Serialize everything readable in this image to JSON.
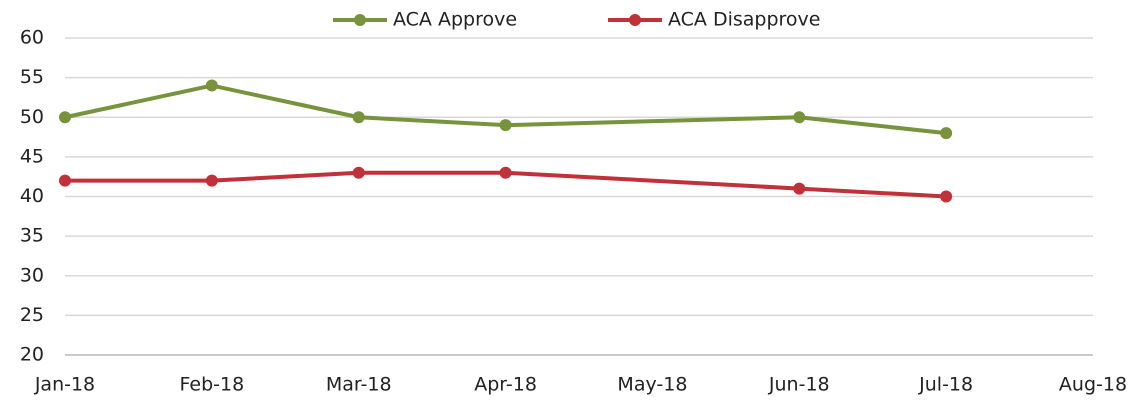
{
  "chart_data": {
    "type": "line",
    "x": [
      "Jan-18",
      "Feb-18",
      "Mar-18",
      "Apr-18",
      "Jun-18",
      "Jul-18"
    ],
    "xticks": [
      "Jan-18",
      "Feb-18",
      "Mar-18",
      "Apr-18",
      "May-18",
      "Jun-18",
      "Jul-18",
      "Aug-18"
    ],
    "series": [
      {
        "name": "ACA Approve",
        "color": "#77933c",
        "values": [
          50,
          54,
          50,
          49,
          50,
          48
        ]
      },
      {
        "name": "ACA Disapprove",
        "color": "#c0313a",
        "values": [
          42,
          42,
          43,
          43,
          41,
          40
        ]
      }
    ],
    "ylim": [
      20,
      60
    ],
    "yticks": [
      20,
      25,
      30,
      35,
      40,
      45,
      50,
      55,
      60
    ],
    "grid": true,
    "legend": "top"
  }
}
